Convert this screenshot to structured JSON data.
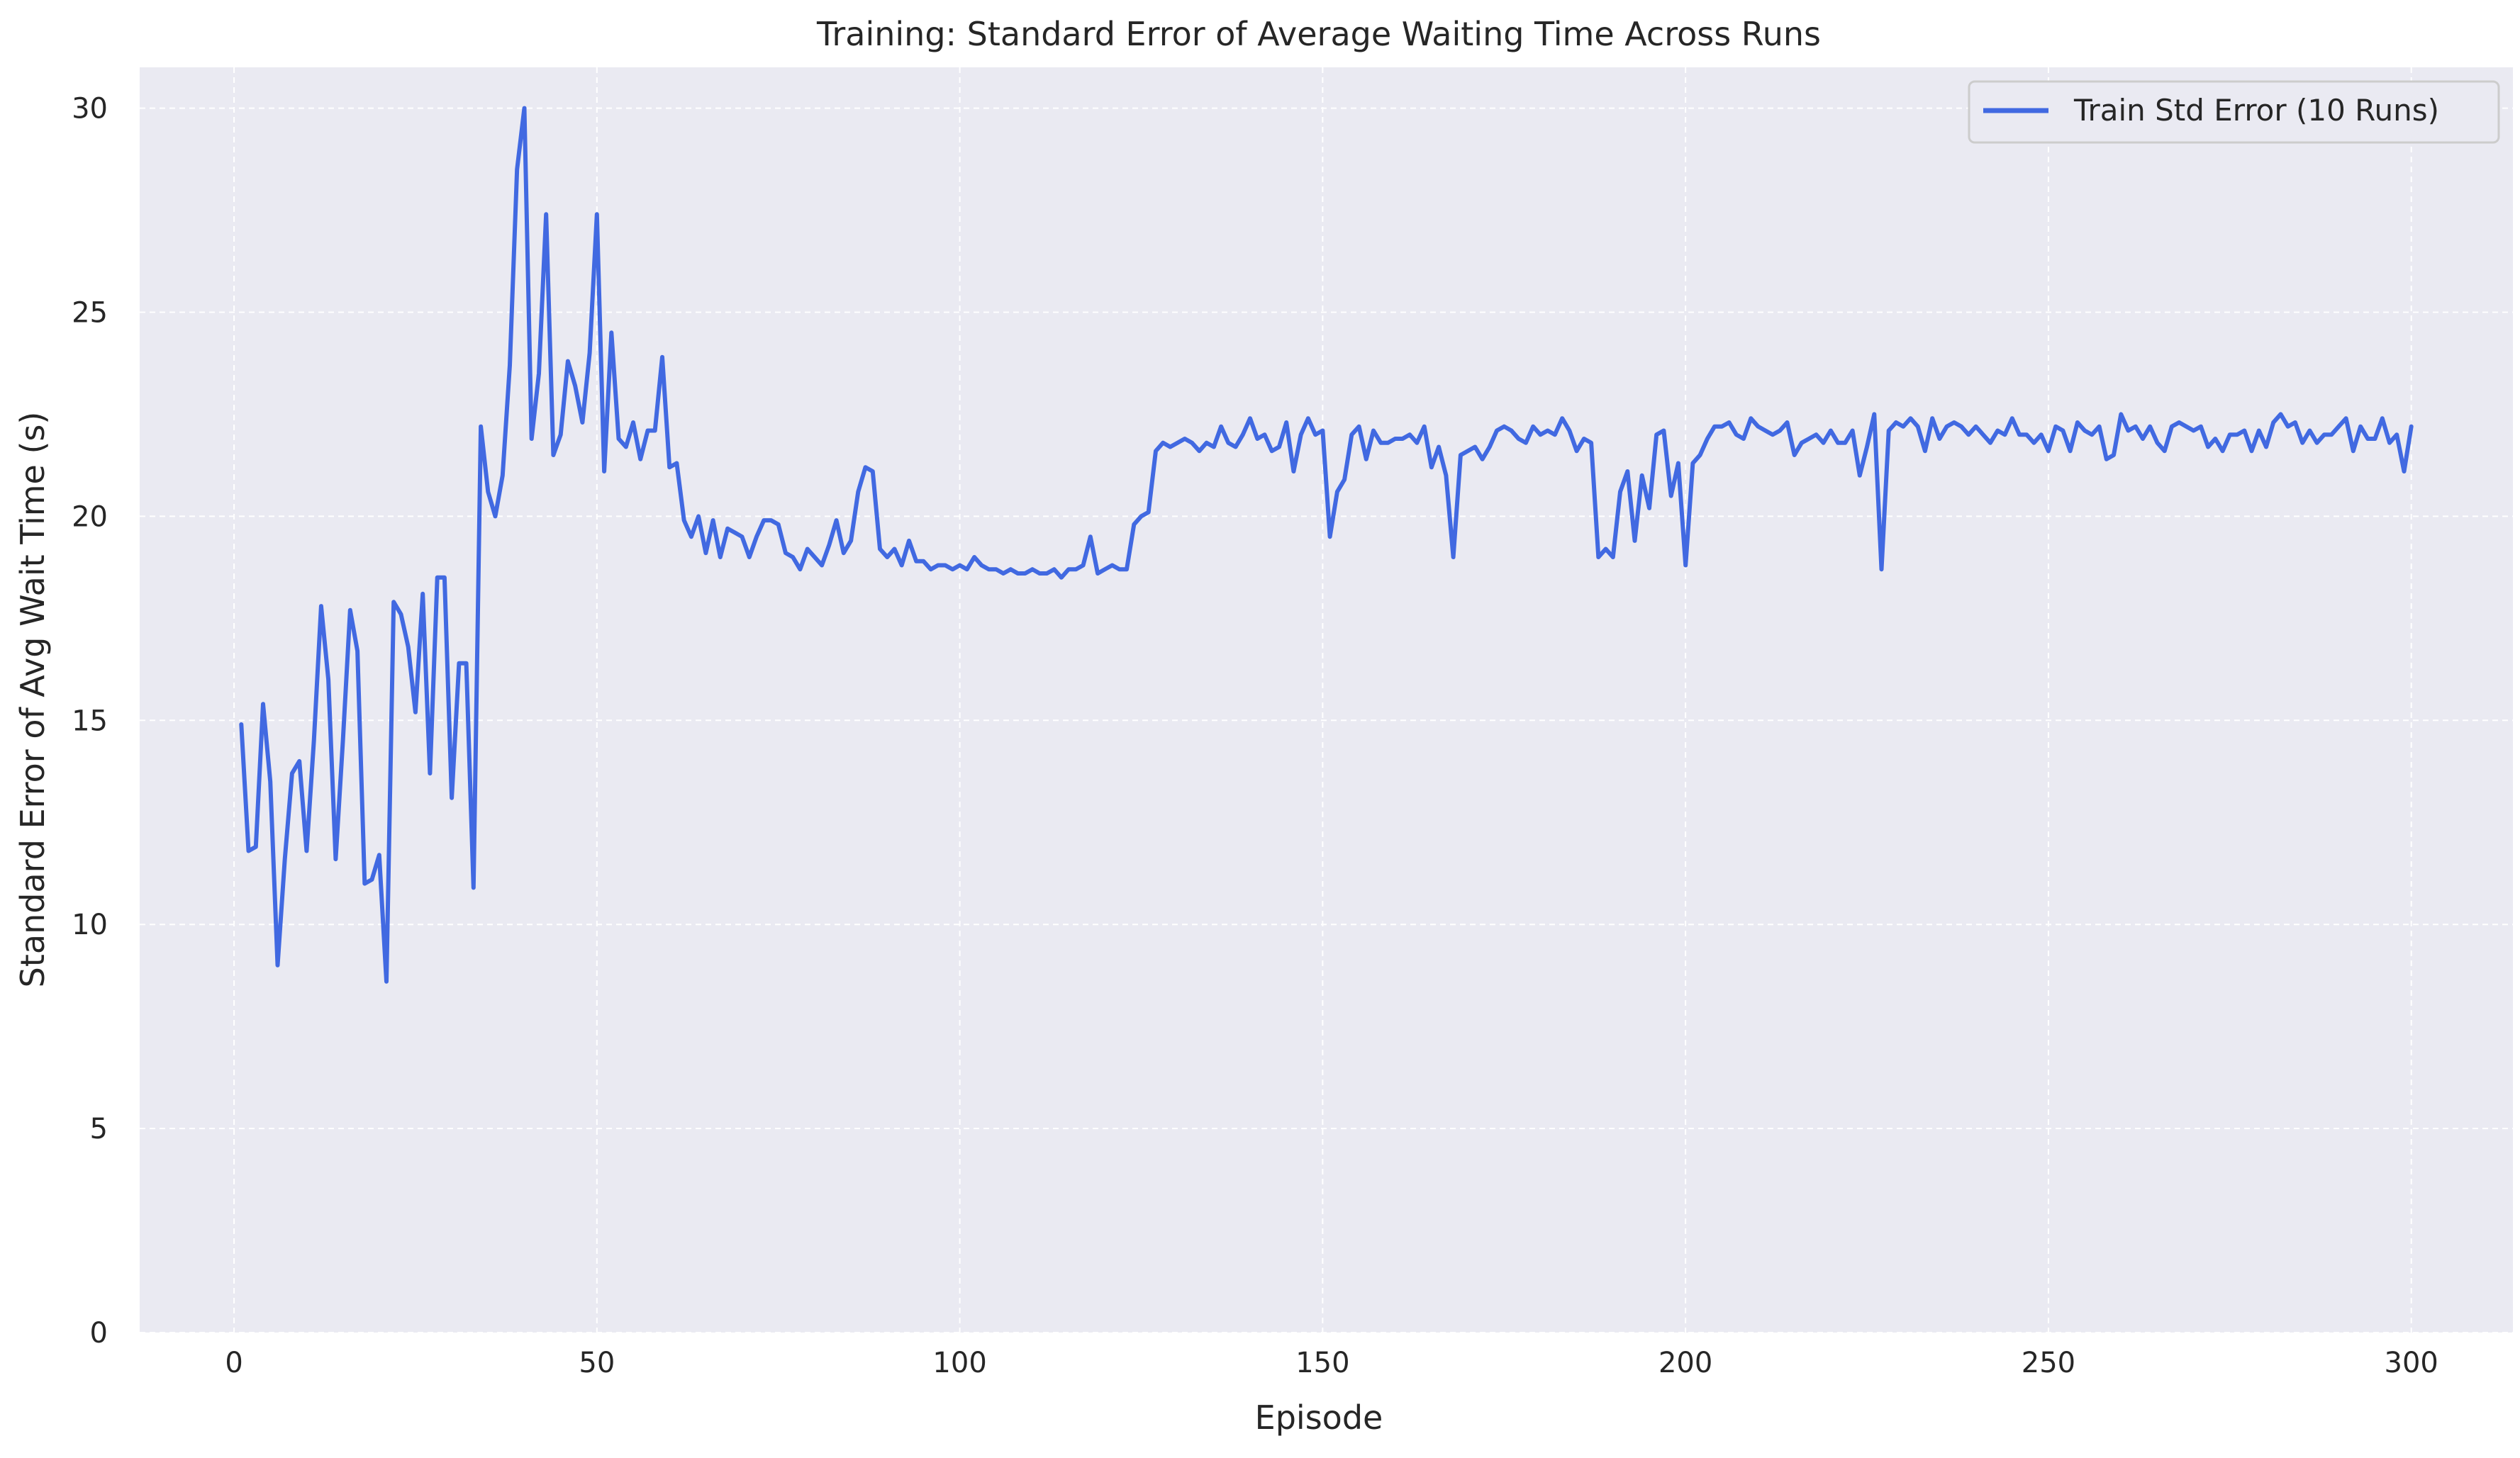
{
  "chart_data": {
    "type": "line",
    "title": "Training: Standard Error of Average Waiting Time Across Runs",
    "xlabel": "Episode",
    "ylabel": "Standard Error of Avg Wait Time (s)",
    "xlim": [
      -13,
      314
    ],
    "ylim": [
      0,
      31
    ],
    "xticks": [
      0,
      50,
      100,
      150,
      200,
      250,
      300
    ],
    "yticks": [
      0,
      5,
      10,
      15,
      20,
      25,
      30
    ],
    "grid": true,
    "legend_position": "top-right",
    "series": [
      {
        "name": "Train Std Error (10 Runs)",
        "color": "#4169e1",
        "x": [
          1,
          2,
          3,
          4,
          5,
          6,
          7,
          8,
          9,
          10,
          11,
          12,
          13,
          14,
          15,
          16,
          17,
          18,
          19,
          20,
          21,
          22,
          23,
          24,
          25,
          26,
          27,
          28,
          29,
          30,
          31,
          32,
          33,
          34,
          35,
          36,
          37,
          38,
          39,
          40,
          41,
          42,
          43,
          44,
          45,
          46,
          47,
          48,
          49,
          50,
          51,
          52,
          53,
          54,
          55,
          56,
          57,
          58,
          59,
          60,
          61,
          62,
          63,
          64,
          65,
          66,
          67,
          68,
          69,
          70,
          71,
          72,
          73,
          74,
          75,
          76,
          77,
          78,
          79,
          80,
          81,
          82,
          83,
          84,
          85,
          86,
          87,
          88,
          89,
          90,
          91,
          92,
          93,
          94,
          95,
          96,
          97,
          98,
          99,
          100,
          101,
          102,
          103,
          104,
          105,
          106,
          107,
          108,
          109,
          110,
          111,
          112,
          113,
          114,
          115,
          116,
          117,
          118,
          119,
          120,
          121,
          122,
          123,
          124,
          125,
          126,
          127,
          128,
          129,
          130,
          131,
          132,
          133,
          134,
          135,
          136,
          137,
          138,
          139,
          140,
          141,
          142,
          143,
          144,
          145,
          146,
          147,
          148,
          149,
          150,
          151,
          152,
          153,
          154,
          155,
          156,
          157,
          158,
          159,
          160,
          161,
          162,
          163,
          164,
          165,
          166,
          167,
          168,
          169,
          170,
          171,
          172,
          173,
          174,
          175,
          176,
          177,
          178,
          179,
          180,
          181,
          182,
          183,
          184,
          185,
          186,
          187,
          188,
          189,
          190,
          191,
          192,
          193,
          194,
          195,
          196,
          197,
          198,
          199,
          200,
          201,
          202,
          203,
          204,
          205,
          206,
          207,
          208,
          209,
          210,
          211,
          212,
          213,
          214,
          215,
          216,
          217,
          218,
          219,
          220,
          221,
          222,
          223,
          224,
          225,
          226,
          227,
          228,
          229,
          230,
          231,
          232,
          233,
          234,
          235,
          236,
          237,
          238,
          239,
          240,
          241,
          242,
          243,
          244,
          245,
          246,
          247,
          248,
          249,
          250,
          251,
          252,
          253,
          254,
          255,
          256,
          257,
          258,
          259,
          260,
          261,
          262,
          263,
          264,
          265,
          266,
          267,
          268,
          269,
          270,
          271,
          272,
          273,
          274,
          275,
          276,
          277,
          278,
          279,
          280,
          281,
          282,
          283,
          284,
          285,
          286,
          287,
          288,
          289,
          290,
          291,
          292,
          293,
          294,
          295,
          296,
          297,
          298,
          299,
          300
        ],
        "y": [
          14.9,
          11.8,
          11.9,
          15.4,
          13.5,
          9.0,
          11.6,
          13.7,
          14.0,
          11.8,
          14.5,
          17.8,
          16.0,
          11.6,
          14.5,
          17.7,
          16.7,
          11.0,
          11.1,
          11.7,
          8.6,
          17.9,
          17.6,
          16.8,
          15.2,
          18.1,
          13.7,
          18.5,
          18.5,
          13.1,
          16.4,
          16.4,
          10.9,
          22.2,
          20.6,
          20.0,
          21.0,
          23.7,
          28.5,
          30.0,
          21.9,
          23.5,
          27.4,
          21.5,
          22.0,
          23.8,
          23.2,
          22.3,
          24.0,
          27.4,
          21.1,
          24.5,
          21.9,
          21.7,
          22.3,
          21.4,
          22.1,
          22.1,
          23.9,
          21.2,
          21.3,
          19.9,
          19.5,
          20.0,
          19.1,
          19.9,
          19.0,
          19.7,
          19.6,
          19.5,
          19.0,
          19.5,
          19.9,
          19.9,
          19.8,
          19.1,
          19.0,
          18.7,
          19.2,
          19.0,
          18.8,
          19.3,
          19.9,
          19.1,
          19.4,
          20.6,
          21.2,
          21.1,
          19.2,
          19.0,
          19.2,
          18.8,
          19.4,
          18.9,
          18.9,
          18.7,
          18.8,
          18.8,
          18.7,
          18.8,
          18.7,
          19.0,
          18.8,
          18.7,
          18.7,
          18.6,
          18.7,
          18.6,
          18.6,
          18.7,
          18.6,
          18.6,
          18.7,
          18.5,
          18.7,
          18.7,
          18.8,
          19.5,
          18.6,
          18.7,
          18.8,
          18.7,
          18.7,
          19.8,
          20.0,
          20.1,
          21.6,
          21.8,
          21.7,
          21.8,
          21.9,
          21.8,
          21.6,
          21.8,
          21.7,
          22.2,
          21.8,
          21.7,
          22.0,
          22.4,
          21.9,
          22.0,
          21.6,
          21.7,
          22.3,
          21.1,
          22.0,
          22.4,
          22.0,
          22.1,
          19.5,
          20.6,
          20.9,
          22.0,
          22.2,
          21.4,
          22.1,
          21.8,
          21.8,
          21.9,
          21.9,
          22.0,
          21.8,
          22.2,
          21.2,
          21.7,
          21.0,
          19.0,
          21.5,
          21.6,
          21.7,
          21.4,
          21.7,
          22.1,
          22.2,
          22.1,
          21.9,
          21.8,
          22.2,
          22.0,
          22.1,
          22.0,
          22.4,
          22.1,
          21.6,
          21.9,
          21.8,
          19.0,
          19.2,
          19.0,
          20.6,
          21.1,
          19.4,
          21.0,
          20.2,
          22.0,
          22.1,
          20.5,
          21.3,
          18.8,
          21.3,
          21.5,
          21.9,
          22.2,
          22.2,
          22.3,
          22.0,
          21.9,
          22.4,
          22.2,
          22.1,
          22.0,
          22.1,
          22.3,
          21.5,
          21.8,
          21.9,
          22.0,
          21.8,
          22.1,
          21.8,
          21.8,
          22.1,
          21.0,
          21.7,
          22.5,
          18.7,
          22.1,
          22.3,
          22.2,
          22.4,
          22.2,
          21.6,
          22.4,
          21.9,
          22.2,
          22.3,
          22.2,
          22.0,
          22.2,
          22.0,
          21.8,
          22.1,
          22.0,
          22.4,
          22.0,
          22.0,
          21.8,
          22.0,
          21.6,
          22.2,
          22.1,
          21.6,
          22.3,
          22.1,
          22.0,
          22.2,
          21.4,
          21.5,
          22.5,
          22.1,
          22.2,
          21.9,
          22.2,
          21.8,
          21.6,
          22.2,
          22.3,
          22.2,
          22.1,
          22.2,
          21.7,
          21.9,
          21.6,
          22.0,
          22.0,
          22.1,
          21.6,
          22.1,
          21.7,
          22.3,
          22.5,
          22.2,
          22.3,
          21.8,
          22.1,
          21.8,
          22.0,
          22.0,
          22.2,
          22.4,
          21.6,
          22.2,
          21.9,
          21.9,
          22.4,
          21.8,
          22.0,
          21.1,
          22.2
        ]
      }
    ]
  }
}
